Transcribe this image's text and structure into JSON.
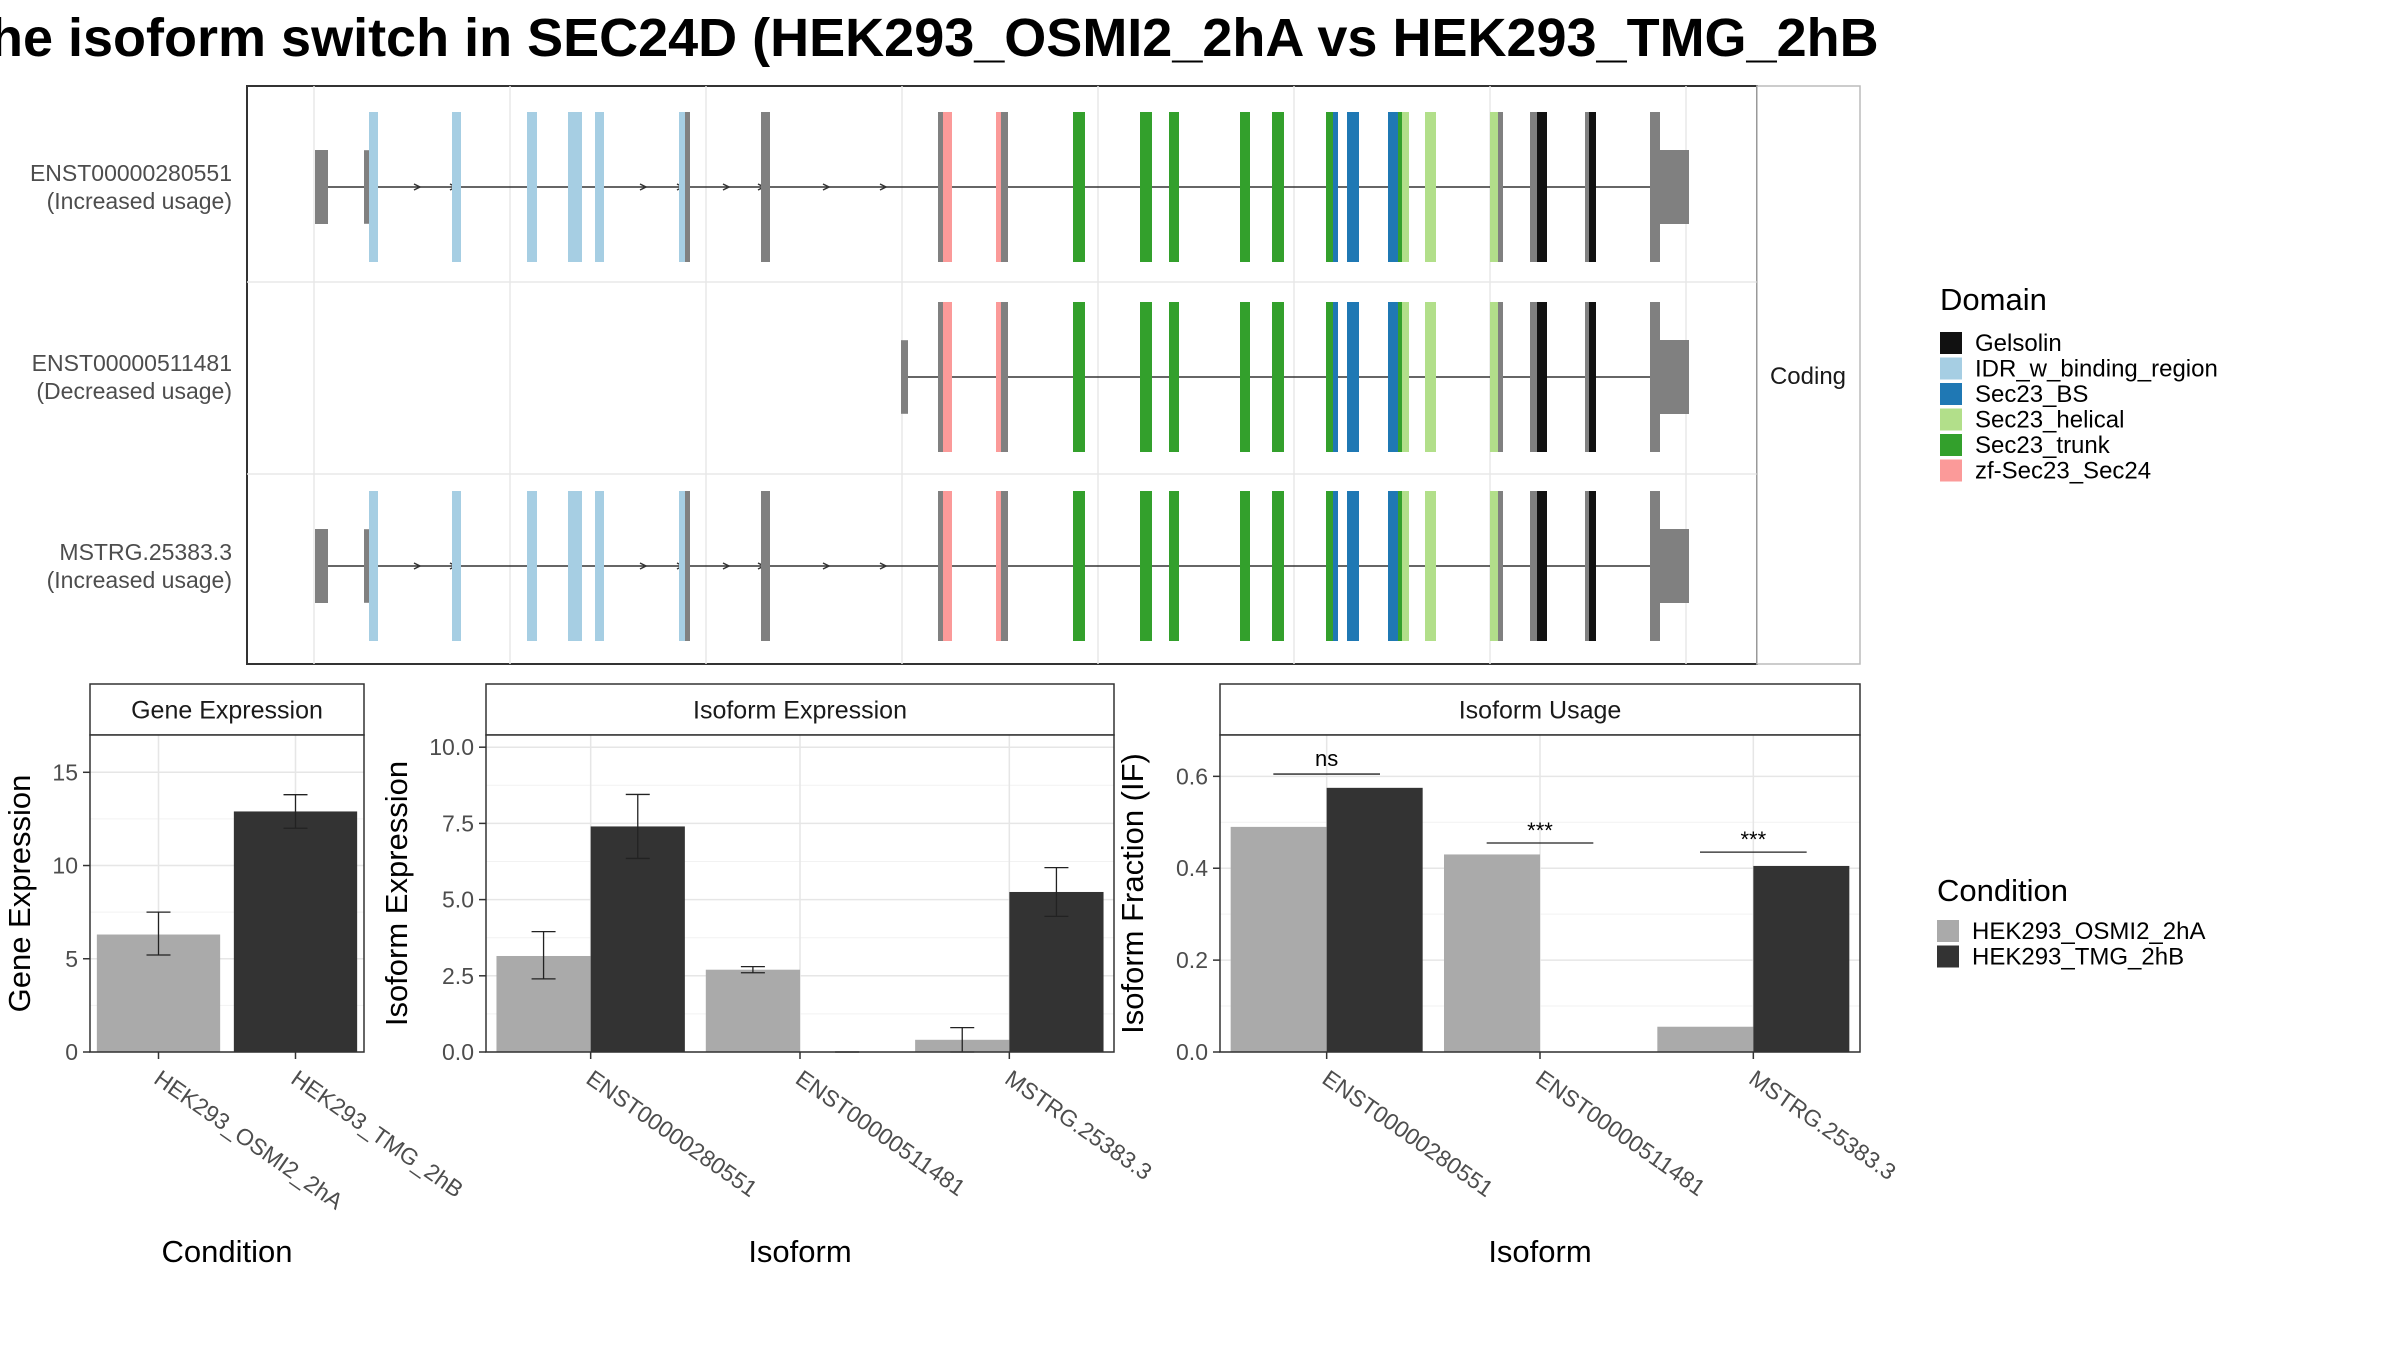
{
  "title": "he isoform switch in SEC24D (HEK293_OSMI2_2hA vs HEK293_TMG_2hB",
  "colors": {
    "Gelsolin": "#111111",
    "IDR_w_binding_region": "#a6cee3",
    "Sec23_BS": "#1f78b4",
    "Sec23_helical": "#b2df8a",
    "Sec23_trunk": "#33a02c",
    "zf-Sec23_Sec24": "#fb9a99",
    "utr": "#808080",
    "condA": "#aaaaaa",
    "condB": "#333333"
  },
  "chart_data": [
    {
      "type": "gene-structure",
      "transcripts": [
        {
          "id": "ENST00000280551",
          "usage": "(Increased usage)"
        },
        {
          "id": "ENST00000511481",
          "usage": "(Decreased usage)"
        },
        {
          "id": "MSTRG.25383.3",
          "usage": "(Increased usage)"
        }
      ],
      "strip": "Coding",
      "legend": {
        "title": "Domain",
        "entries": [
          "Gelsolin",
          "IDR_w_binding_region",
          "Sec23_BS",
          "Sec23_helical",
          "Sec23_trunk",
          "zf-Sec23_Sec24"
        ]
      }
    },
    {
      "type": "bar",
      "title": "Gene Expression",
      "xlabel": "Condition",
      "ylabel": "Gene Expression",
      "ylim": [
        0,
        17
      ],
      "yticks": [
        "0",
        "5",
        "10",
        "15"
      ],
      "categories": [
        "HEK293_OSMI2_2hA",
        "HEK293_TMG_2hB"
      ],
      "values": [
        6.3,
        12.9
      ],
      "errors": [
        [
          5.2,
          7.5
        ],
        [
          12.0,
          13.8
        ]
      ]
    },
    {
      "type": "bar",
      "title": "Isoform Expression",
      "xlabel": "Isoform",
      "ylabel": "Isoform Expression",
      "ylim": [
        0,
        10.4
      ],
      "yticks": [
        "0.0",
        "2.5",
        "5.0",
        "7.5",
        "10.0"
      ],
      "categories": [
        "ENST00000280551",
        "ENST00000511481",
        "MSTRG.25383.3"
      ],
      "series": [
        {
          "name": "HEK293_OSMI2_2hA",
          "values": [
            3.15,
            2.7,
            0.4
          ],
          "errors": [
            [
              2.4,
              3.95
            ],
            [
              2.6,
              2.8
            ],
            [
              0.0,
              0.8
            ]
          ]
        },
        {
          "name": "HEK293_TMG_2hB",
          "values": [
            7.4,
            0.0,
            5.25
          ],
          "errors": [
            [
              6.35,
              8.45
            ],
            [
              0.0,
              0.0
            ],
            [
              4.45,
              6.05
            ]
          ]
        }
      ]
    },
    {
      "type": "bar",
      "title": "Isoform Usage",
      "xlabel": "Isoform",
      "ylabel": "Isoform Fraction (IF)",
      "ylim": [
        0,
        0.69
      ],
      "yticks": [
        "0.0",
        "0.2",
        "0.4",
        "0.6"
      ],
      "categories": [
        "ENST00000280551",
        "ENST00000511481",
        "MSTRG.25383.3"
      ],
      "series": [
        {
          "name": "HEK293_OSMI2_2hA",
          "values": [
            0.49,
            0.43,
            0.055
          ]
        },
        {
          "name": "HEK293_TMG_2hB",
          "values": [
            0.575,
            0.0,
            0.405
          ]
        }
      ],
      "significance": [
        "ns",
        "***",
        "***"
      ],
      "significance_y": [
        0.605,
        0.455,
        0.435
      ]
    }
  ],
  "condition_legend": {
    "title": "Condition",
    "entries": [
      "HEK293_OSMI2_2hA",
      "HEK293_TMG_2hB"
    ]
  }
}
